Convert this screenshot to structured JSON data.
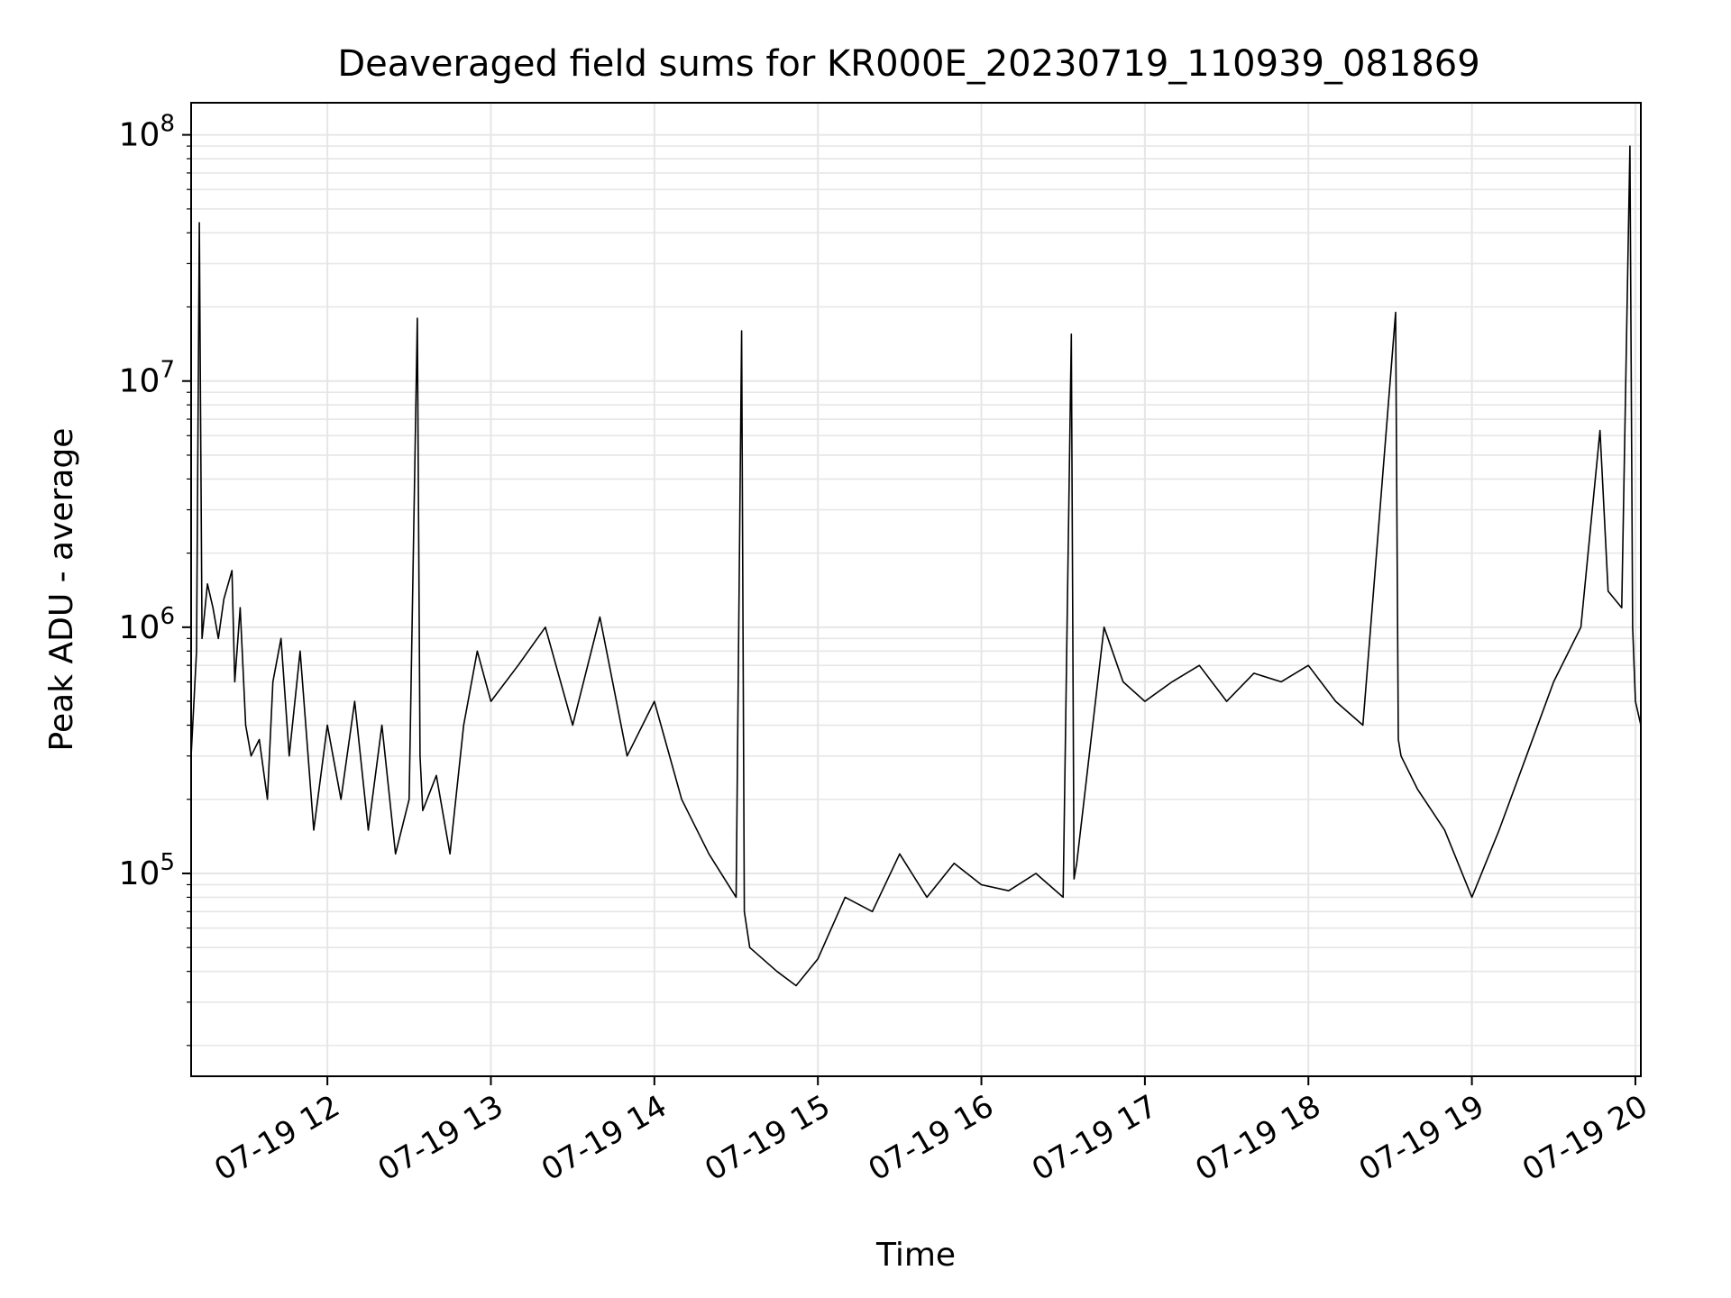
{
  "chart_data": {
    "type": "line",
    "title": "Deaveraged field sums for KR000E_20230719_110939_081869",
    "xlabel": "Time",
    "ylabel": "Peak ADU - average",
    "yscale": "log",
    "grid": true,
    "legend": "none",
    "line_color": "#000000",
    "xlim": [
      "2023-07-19 11:10",
      "2023-07-19 20:02"
    ],
    "ylim": [
      15000,
      135000000
    ],
    "x_ticks": [
      {
        "value": "2023-07-19 12:00",
        "label": "07-19 12"
      },
      {
        "value": "2023-07-19 13:00",
        "label": "07-19 13"
      },
      {
        "value": "2023-07-19 14:00",
        "label": "07-19 14"
      },
      {
        "value": "2023-07-19 15:00",
        "label": "07-19 15"
      },
      {
        "value": "2023-07-19 16:00",
        "label": "07-19 16"
      },
      {
        "value": "2023-07-19 17:00",
        "label": "07-19 17"
      },
      {
        "value": "2023-07-19 18:00",
        "label": "07-19 18"
      },
      {
        "value": "2023-07-19 19:00",
        "label": "07-19 19"
      },
      {
        "value": "2023-07-19 20:00",
        "label": "07-19 20"
      }
    ],
    "y_ticks": [
      {
        "value": 100000,
        "base": "10",
        "exp": "5"
      },
      {
        "value": 1000000,
        "base": "10",
        "exp": "6"
      },
      {
        "value": 10000000,
        "base": "10",
        "exp": "7"
      },
      {
        "value": 100000000,
        "base": "10",
        "exp": "8"
      }
    ],
    "series": [
      {
        "note_values_approximate": true,
        "x": [
          "2023-07-19 11:10",
          "2023-07-19 11:12",
          "2023-07-19 11:13",
          "2023-07-19 11:14",
          "2023-07-19 11:16",
          "2023-07-19 11:18",
          "2023-07-19 11:20",
          "2023-07-19 11:22",
          "2023-07-19 11:25",
          "2023-07-19 11:26",
          "2023-07-19 11:28",
          "2023-07-19 11:30",
          "2023-07-19 11:32",
          "2023-07-19 11:35",
          "2023-07-19 11:38",
          "2023-07-19 11:40",
          "2023-07-19 11:43",
          "2023-07-19 11:46",
          "2023-07-19 11:50",
          "2023-07-19 11:55",
          "2023-07-19 12:00",
          "2023-07-19 12:05",
          "2023-07-19 12:10",
          "2023-07-19 12:15",
          "2023-07-19 12:20",
          "2023-07-19 12:25",
          "2023-07-19 12:30",
          "2023-07-19 12:33",
          "2023-07-19 12:34",
          "2023-07-19 12:35",
          "2023-07-19 12:40",
          "2023-07-19 12:45",
          "2023-07-19 12:50",
          "2023-07-19 12:55",
          "2023-07-19 13:00",
          "2023-07-19 13:10",
          "2023-07-19 13:20",
          "2023-07-19 13:30",
          "2023-07-19 13:40",
          "2023-07-19 13:50",
          "2023-07-19 14:00",
          "2023-07-19 14:10",
          "2023-07-19 14:20",
          "2023-07-19 14:30",
          "2023-07-19 14:32",
          "2023-07-19 14:33",
          "2023-07-19 14:35",
          "2023-07-19 14:45",
          "2023-07-19 14:52",
          "2023-07-19 15:00",
          "2023-07-19 15:10",
          "2023-07-19 15:20",
          "2023-07-19 15:30",
          "2023-07-19 15:40",
          "2023-07-19 15:50",
          "2023-07-19 16:00",
          "2023-07-19 16:10",
          "2023-07-19 16:20",
          "2023-07-19 16:30",
          "2023-07-19 16:33",
          "2023-07-19 16:34",
          "2023-07-19 16:35",
          "2023-07-19 16:45",
          "2023-07-19 16:52",
          "2023-07-19 17:00",
          "2023-07-19 17:10",
          "2023-07-19 17:20",
          "2023-07-19 17:30",
          "2023-07-19 17:40",
          "2023-07-19 17:50",
          "2023-07-19 18:00",
          "2023-07-19 18:10",
          "2023-07-19 18:20",
          "2023-07-19 18:32",
          "2023-07-19 18:33",
          "2023-07-19 18:34",
          "2023-07-19 18:40",
          "2023-07-19 18:50",
          "2023-07-19 19:00",
          "2023-07-19 19:10",
          "2023-07-19 19:20",
          "2023-07-19 19:30",
          "2023-07-19 19:40",
          "2023-07-19 19:47",
          "2023-07-19 19:50",
          "2023-07-19 19:55",
          "2023-07-19 19:58",
          "2023-07-19 19:59",
          "2023-07-19 20:00",
          "2023-07-19 20:02"
        ],
        "y": [
          300000,
          800000,
          44000000,
          900000,
          1500000,
          1200000,
          900000,
          1300000,
          1700000,
          600000,
          1200000,
          400000,
          300000,
          350000,
          200000,
          600000,
          900000,
          300000,
          800000,
          150000,
          400000,
          200000,
          500000,
          150000,
          400000,
          120000,
          200000,
          18000000,
          300000,
          180000,
          250000,
          120000,
          400000,
          800000,
          500000,
          700000,
          1000000,
          400000,
          1100000,
          300000,
          500000,
          200000,
          120000,
          80000,
          16000000,
          70000,
          50000,
          40000,
          35000,
          45000,
          80000,
          70000,
          120000,
          80000,
          110000,
          90000,
          85000,
          100000,
          80000,
          15500000,
          95000,
          110000,
          1000000,
          600000,
          500000,
          600000,
          700000,
          500000,
          650000,
          600000,
          700000,
          500000,
          400000,
          19000000,
          350000,
          300000,
          220000,
          150000,
          80000,
          150000,
          300000,
          600000,
          1000000,
          6300000,
          1400000,
          1200000,
          90000000,
          1000000,
          500000,
          400000
        ]
      }
    ]
  }
}
